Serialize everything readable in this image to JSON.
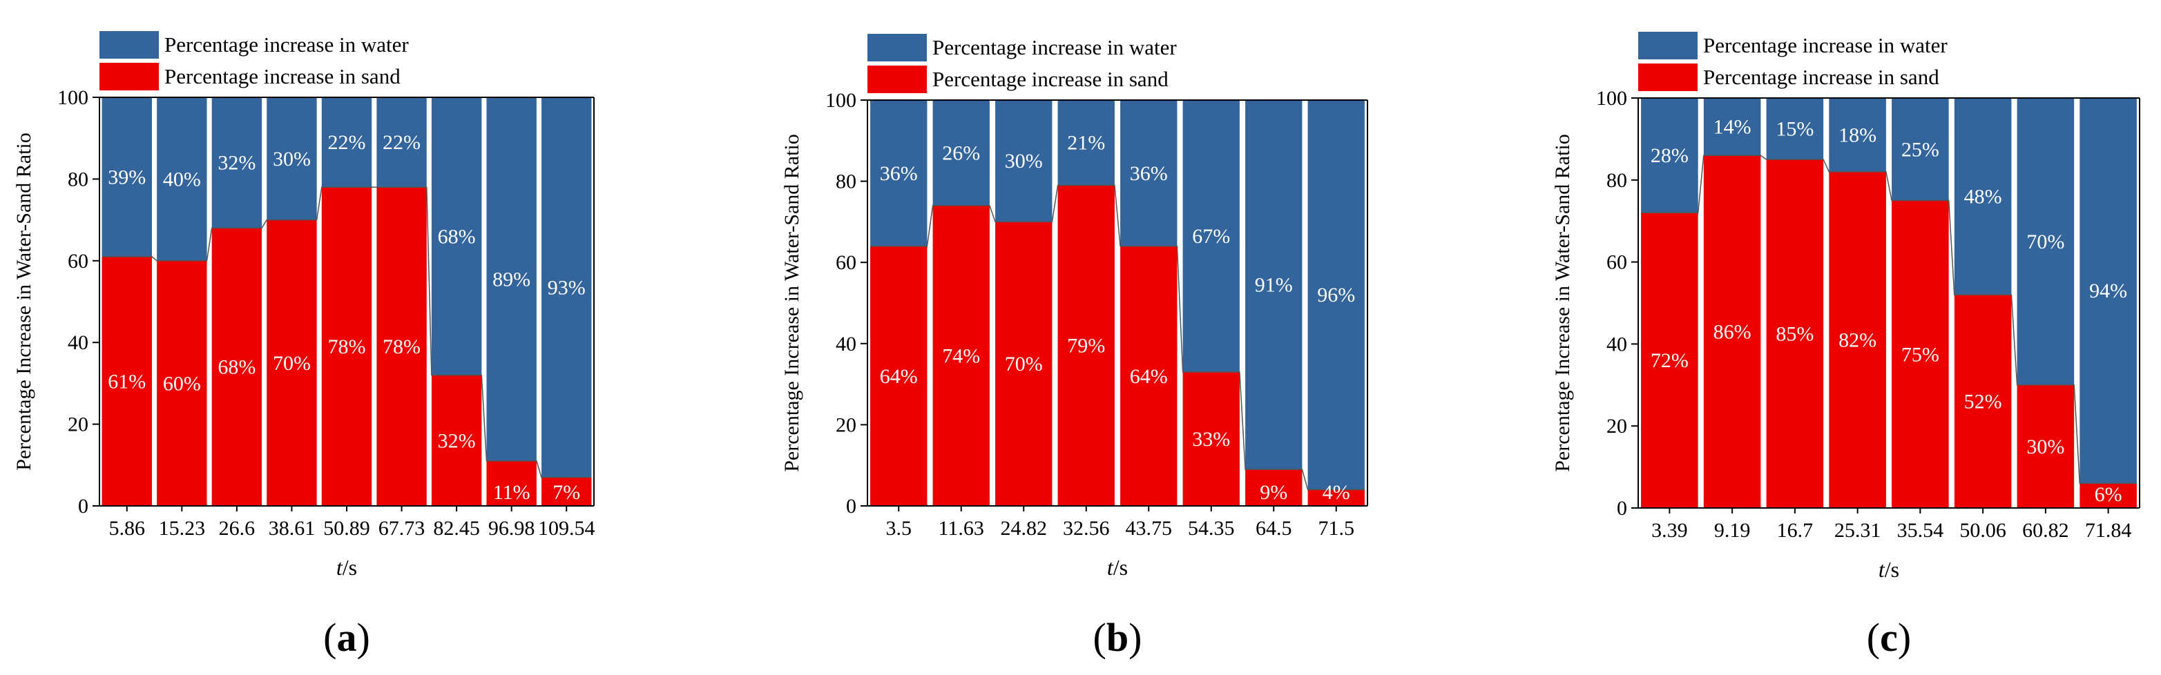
{
  "colors": {
    "water": "#33659C",
    "sand": "#EE0000",
    "axis": "#000000",
    "bar_label": "#ffffff",
    "connector": "#555555"
  },
  "legend": {
    "water": "Percentage increase in water",
    "sand": "Percentage increase in sand"
  },
  "chart_data": [
    {
      "type": "bar",
      "stacked": true,
      "panel_label": "(a)",
      "panel_letter": "a",
      "xlabel_var": "t",
      "xlabel_unit": "/s",
      "ylabel": "Percentage Increase in Water-Sand Ratio",
      "ylim": [
        0,
        100
      ],
      "yticks": [
        0,
        20,
        40,
        60,
        80,
        100
      ],
      "categories": [
        "5.86",
        "15.23",
        "26.6",
        "38.61",
        "50.89",
        "67.73",
        "82.45",
        "96.98",
        "109.54"
      ],
      "series": [
        {
          "name": "Percentage increase in sand",
          "values": [
            61,
            60,
            68,
            70,
            78,
            78,
            32,
            11,
            7
          ],
          "labels": [
            "61%",
            "60%",
            "68%",
            "70%",
            "78%",
            "78%",
            "32%",
            "11%",
            "7%"
          ]
        },
        {
          "name": "Percentage increase in water",
          "values": [
            39,
            40,
            32,
            30,
            22,
            22,
            68,
            89,
            93
          ],
          "labels": [
            "39%",
            "40%",
            "32%",
            "30%",
            "22%",
            "22%",
            "68%",
            "89%",
            "93%"
          ]
        }
      ]
    },
    {
      "type": "bar",
      "stacked": true,
      "panel_label": "(b)",
      "panel_letter": "b",
      "xlabel_var": "t",
      "xlabel_unit": "/s",
      "ylabel": "Percentage Increase in Water-Sand Ratio",
      "ylim": [
        0,
        100
      ],
      "yticks": [
        0,
        20,
        40,
        60,
        80,
        100
      ],
      "categories": [
        "3.5",
        "11.63",
        "24.82",
        "32.56",
        "43.75",
        "54.35",
        "64.5",
        "71.5"
      ],
      "series": [
        {
          "name": "Percentage increase in sand",
          "values": [
            64,
            74,
            70,
            79,
            64,
            33,
            9,
            4
          ],
          "labels": [
            "64%",
            "74%",
            "70%",
            "79%",
            "64%",
            "33%",
            "9%",
            "4%"
          ]
        },
        {
          "name": "Percentage increase in water",
          "values": [
            36,
            26,
            30,
            21,
            36,
            67,
            91,
            96
          ],
          "labels": [
            "36%",
            "26%",
            "30%",
            "21%",
            "36%",
            "67%",
            "91%",
            "96%"
          ]
        }
      ]
    },
    {
      "type": "bar",
      "stacked": true,
      "panel_label": "(c)",
      "panel_letter": "c",
      "xlabel_var": "t",
      "xlabel_unit": "/s",
      "ylabel": "Percentage Increase in Water-Sand Ratio",
      "ylim": [
        0,
        100
      ],
      "yticks": [
        0,
        20,
        40,
        60,
        80,
        100
      ],
      "categories": [
        "3.39",
        "9.19",
        "16.7",
        "25.31",
        "35.54",
        "50.06",
        "60.82",
        "71.84"
      ],
      "series": [
        {
          "name": "Percentage increase in sand",
          "values": [
            72,
            86,
            85,
            82,
            75,
            52,
            30,
            6
          ],
          "labels": [
            "72%",
            "86%",
            "85%",
            "82%",
            "75%",
            "52%",
            "30%",
            "6%"
          ]
        },
        {
          "name": "Percentage increase in water",
          "values": [
            28,
            14,
            15,
            18,
            25,
            48,
            70,
            94
          ],
          "labels": [
            "28%",
            "14%",
            "15%",
            "18%",
            "25%",
            "48%",
            "70%",
            "94%"
          ]
        }
      ]
    }
  ]
}
